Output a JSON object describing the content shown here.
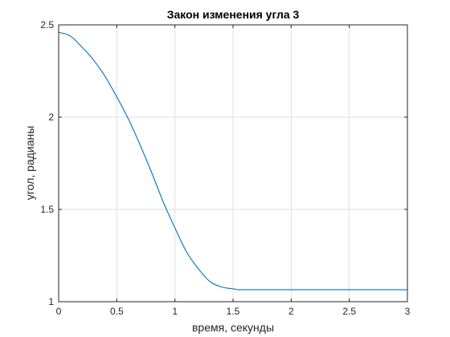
{
  "chart_data": {
    "type": "line",
    "title": "Закон изменения угла 3",
    "xlabel": "время, секунды",
    "ylabel": "угол, радианы",
    "xlim": [
      0,
      3
    ],
    "ylim": [
      1,
      2.5
    ],
    "xticks": [
      "0",
      "0.5",
      "1",
      "1.5",
      "2",
      "2.5",
      "3"
    ],
    "yticks": [
      "1",
      "1.5",
      "2",
      "2.5"
    ],
    "grid": true,
    "series": [
      {
        "color": "#0072bd",
        "x": [
          0,
          0.1,
          0.2,
          0.3,
          0.4,
          0.5,
          0.6,
          0.7,
          0.8,
          0.9,
          1.0,
          1.1,
          1.2,
          1.3,
          1.4,
          1.5,
          1.55,
          1.6,
          2.0,
          2.5,
          3.0
        ],
        "y": [
          2.46,
          2.44,
          2.38,
          2.31,
          2.22,
          2.11,
          1.99,
          1.85,
          1.7,
          1.54,
          1.4,
          1.27,
          1.18,
          1.11,
          1.08,
          1.07,
          1.065,
          1.065,
          1.065,
          1.065,
          1.065
        ]
      }
    ]
  }
}
